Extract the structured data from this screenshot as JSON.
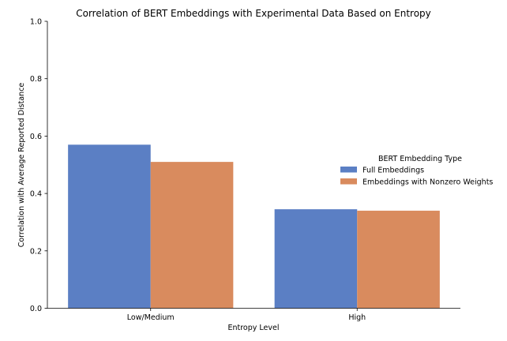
{
  "chart_data": {
    "type": "bar",
    "title": "Correlation of BERT Embeddings with Experimental Data Based on Entropy",
    "xlabel": "Entropy Level",
    "ylabel": "Correlation with Average Reported Distance",
    "categories": [
      "Low/Medium",
      "High"
    ],
    "series": [
      {
        "name": "Full Embeddings",
        "values": [
          0.57,
          0.345
        ],
        "color": "#5b7fc4"
      },
      {
        "name": "Embeddings with Nonzero Weights",
        "values": [
          0.51,
          0.34
        ],
        "color": "#d98b5e"
      }
    ],
    "ylim": [
      0,
      1.0
    ],
    "yticks": [
      "0.0",
      "0.2",
      "0.4",
      "0.6",
      "0.8",
      "1.0"
    ],
    "grid": false,
    "legend": {
      "title": "BERT Embedding Type",
      "placement": "right"
    }
  }
}
